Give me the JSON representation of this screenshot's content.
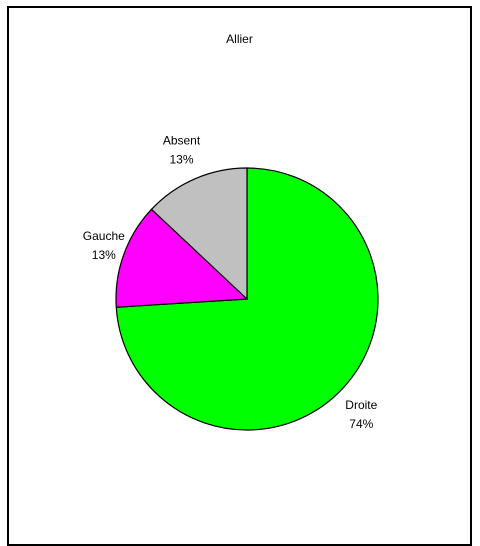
{
  "chart_data": {
    "type": "pie",
    "title": "Allier",
    "start_angle_deg": 0,
    "direction": "clockwise",
    "slices": [
      {
        "label": "Droite",
        "percent_label": "74%",
        "value": 74,
        "color": "#00ff00"
      },
      {
        "label": "Gauche",
        "percent_label": "13%",
        "value": 13,
        "color": "#ff00ff"
      },
      {
        "label": "Absent",
        "percent_label": "13%",
        "value": 13,
        "color": "#c0c0c0"
      }
    ]
  }
}
